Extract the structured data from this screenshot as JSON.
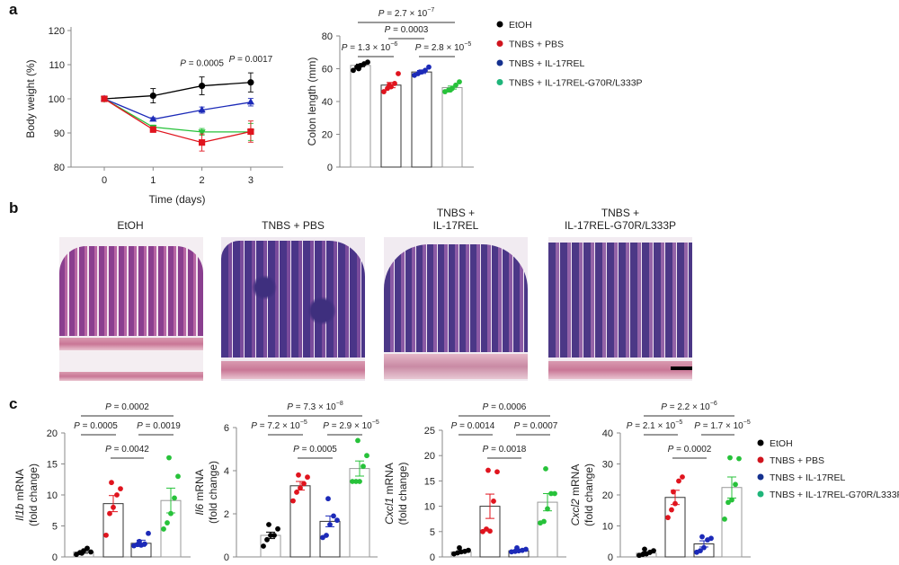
{
  "panel_labels": {
    "a": "a",
    "b": "b",
    "c": "c"
  },
  "groups": [
    {
      "name": "EtOH",
      "color": "#000000",
      "marker": "circle"
    },
    {
      "name": "TNBS + PBS",
      "color": "#e0141e",
      "marker": "square"
    },
    {
      "name": "TNBS + IL-17REL",
      "color": "#1c2ab8",
      "marker": "triangle-up"
    },
    {
      "name": "TNBS + IL-17REL-G70R/L333P",
      "color": "#27c23a",
      "marker": "triangle-down"
    }
  ],
  "legend_colors": [
    "#000000",
    "#d0141e",
    "#15318f",
    "#1fb57a"
  ],
  "histology": {
    "titles": [
      {
        "line1": "EtOH",
        "line2": ""
      },
      {
        "line1": "TNBS + PBS",
        "line2": ""
      },
      {
        "line1": "TNBS +",
        "line2": "IL-17REL"
      },
      {
        "line1": "TNBS +",
        "line2": "IL-17REL-G70R/L333P"
      }
    ],
    "scale_bar_shown": true
  },
  "chart_data": [
    {
      "type": "line",
      "xlabel": "Time (days)",
      "ylabel": "Body weight (%)",
      "x": [
        0,
        1,
        2,
        3
      ],
      "xticks": [
        "0",
        "1",
        "2",
        "3"
      ],
      "ylim": [
        80,
        120
      ],
      "yticks": [
        80,
        90,
        100,
        110,
        120
      ],
      "series": [
        {
          "name": "EtOH",
          "values": [
            100,
            100.9,
            103.8,
            104.8
          ],
          "error": [
            0.3,
            2.1,
            2.6,
            2.8
          ]
        },
        {
          "name": "TNBS + IL-17REL",
          "values": [
            100,
            94.0,
            96.7,
            99.0
          ],
          "error": [
            0.3,
            0.5,
            0.9,
            1.1
          ]
        },
        {
          "name": "TNBS + IL-17REL-G70R/L333P",
          "values": [
            100,
            91.7,
            90.3,
            90.3
          ],
          "error": [
            0.3,
            0.6,
            1.0,
            2.5
          ]
        },
        {
          "name": "TNBS + PBS",
          "values": [
            100,
            91.0,
            87.2,
            90.4
          ],
          "error": [
            0.3,
            0.8,
            2.5,
            3.1
          ]
        }
      ],
      "annotations": [
        {
          "day": 2,
          "label": "P = 0.0005",
          "exp": ""
        },
        {
          "day": 3,
          "label": "P = 0.0017",
          "exp": ""
        }
      ]
    },
    {
      "type": "bar",
      "ylabel": "Colon length (mm)",
      "categories": [
        "EtOH",
        "TNBS + PBS",
        "TNBS + IL-17REL",
        "TNBS + IL-17REL-G70R/L333P"
      ],
      "ylim": [
        0,
        80
      ],
      "yticks": [
        0,
        20,
        40,
        60,
        80
      ],
      "values": [
        62,
        50,
        58,
        48.5
      ],
      "error": [
        0.8,
        1.6,
        0.9,
        0.9
      ],
      "points": [
        [
          59,
          61,
          62,
          63,
          64,
          60
        ],
        [
          46,
          48,
          49,
          51,
          57,
          50
        ],
        [
          56,
          57,
          58,
          59,
          61,
          58
        ],
        [
          46,
          47,
          48,
          50,
          52,
          47
        ]
      ],
      "comparisons": [
        {
          "from": 0,
          "to": 3,
          "label": "P = 2.7 × 10",
          "exp": "−7"
        },
        {
          "from": 1,
          "to": 2,
          "label": "P = 0.0003",
          "exp": ""
        },
        {
          "from": 0,
          "to": 1,
          "label": "P = 1.3 × 10",
          "exp": "−6"
        },
        {
          "from": 2,
          "to": 3,
          "label": "P = 2.8 × 10",
          "exp": "−5"
        }
      ]
    },
    {
      "type": "bar",
      "ylabel_gene": "Il1b",
      "ylabel_suffix": " mRNA",
      "ylabel_line2": "(fold change)",
      "categories": [
        "EtOH",
        "TNBS + PBS",
        "TNBS + IL-17REL",
        "TNBS + IL-17REL-G70R/L333P"
      ],
      "ylim": [
        0,
        20
      ],
      "yticks": [
        0,
        5,
        10,
        15,
        20
      ],
      "values": [
        0.8,
        8.6,
        2.2,
        9.1
      ],
      "error": [
        0.2,
        1.3,
        0.5,
        2.0
      ],
      "points": [
        [
          0.4,
          0.7,
          1.0,
          1.4,
          0.8,
          0.6
        ],
        [
          3.5,
          7.0,
          8.0,
          10.0,
          11.0,
          12.0
        ],
        [
          1.8,
          2.0,
          1.9,
          2.1,
          3.8,
          2.5
        ],
        [
          4.5,
          5.5,
          7.0,
          9.5,
          13.0,
          16.0
        ]
      ],
      "comparisons": [
        {
          "from": 0,
          "to": 3,
          "label": "P = 0.0002",
          "exp": ""
        },
        {
          "from": 0,
          "to": 1,
          "label": "P = 0.0005",
          "exp": ""
        },
        {
          "from": 2,
          "to": 3,
          "label": "P = 0.0019",
          "exp": ""
        },
        {
          "from": 1,
          "to": 2,
          "label": "P = 0.0042",
          "exp": ""
        }
      ]
    },
    {
      "type": "bar",
      "ylabel_gene": "Il6",
      "ylabel_suffix": " mRNA",
      "ylabel_line2": "(fold change)",
      "categories": [
        "EtOH",
        "TNBS + PBS",
        "TNBS + IL-17REL",
        "TNBS + IL-17REL-G70R/L333P"
      ],
      "ylim": [
        0,
        6
      ],
      "yticks": [
        0,
        2,
        4,
        6
      ],
      "values": [
        1.0,
        3.3,
        1.65,
        4.1
      ],
      "error": [
        0.15,
        0.2,
        0.25,
        0.35
      ],
      "points": [
        [
          0.5,
          0.8,
          1.0,
          1.0,
          1.3,
          1.5
        ],
        [
          2.6,
          3.0,
          3.2,
          3.4,
          3.7,
          3.8
        ],
        [
          0.9,
          1.0,
          1.5,
          1.9,
          1.7,
          2.7
        ],
        [
          3.5,
          3.5,
          3.5,
          4.2,
          4.7,
          5.4
        ]
      ],
      "comparisons": [
        {
          "from": 0,
          "to": 3,
          "label": "P = 7.3 × 10",
          "exp": "−8"
        },
        {
          "from": 0,
          "to": 1,
          "label": "P = 7.2 × 10",
          "exp": "−5"
        },
        {
          "from": 2,
          "to": 3,
          "label": "P = 2.9 × 10",
          "exp": "−5"
        },
        {
          "from": 1,
          "to": 2,
          "label": "P = 0.0005",
          "exp": ""
        }
      ]
    },
    {
      "type": "bar",
      "ylabel_gene": "Cxcl1",
      "ylabel_suffix": " mRNA",
      "ylabel_line2": "(fold change)",
      "categories": [
        "EtOH",
        "TNBS + PBS",
        "TNBS + IL-17REL",
        "TNBS + IL-17REL-G70R/L333P"
      ],
      "ylim": [
        0,
        25
      ],
      "yticks": [
        0,
        5,
        10,
        15,
        20,
        25
      ],
      "values": [
        1.0,
        10.0,
        1.2,
        10.8
      ],
      "error": [
        0.2,
        2.4,
        0.2,
        1.7
      ],
      "points": [
        [
          0.6,
          0.8,
          1.0,
          1.1,
          1.3,
          1.8
        ],
        [
          5.0,
          5.5,
          5.1,
          11.0,
          16.8,
          17.1
        ],
        [
          1.0,
          1.1,
          1.2,
          1.3,
          1.5,
          1.8
        ],
        [
          6.7,
          7.0,
          9.5,
          12.5,
          12.5,
          17.4
        ]
      ],
      "comparisons": [
        {
          "from": 0,
          "to": 3,
          "label": "P = 0.0006",
          "exp": ""
        },
        {
          "from": 0,
          "to": 1,
          "label": "P = 0.0014",
          "exp": ""
        },
        {
          "from": 2,
          "to": 3,
          "label": "P = 0.0007",
          "exp": ""
        },
        {
          "from": 1,
          "to": 2,
          "label": "P = 0.0018",
          "exp": ""
        }
      ]
    },
    {
      "type": "bar",
      "ylabel_gene": "Cxcl2",
      "ylabel_suffix": " mRNA",
      "ylabel_line2": "(fold change)",
      "categories": [
        "EtOH",
        "TNBS + PBS",
        "TNBS + IL-17REL",
        "TNBS + IL-17REL-G70R/L333P"
      ],
      "ylim": [
        0,
        40
      ],
      "yticks": [
        0,
        10,
        20,
        30,
        40
      ],
      "values": [
        1.2,
        19.2,
        4.2,
        22.4
      ],
      "error": [
        0.4,
        2.3,
        1.0,
        3.4
      ],
      "points": [
        [
          0.5,
          0.8,
          1.0,
          1.5,
          2.0,
          2.5
        ],
        [
          12.7,
          15.2,
          17.2,
          24.5,
          25.8,
          21.0
        ],
        [
          1.5,
          2.0,
          3.0,
          5.5,
          6.0,
          6.5
        ],
        [
          12.2,
          17.6,
          18.4,
          23.4,
          31.7,
          32.0
        ]
      ],
      "comparisons": [
        {
          "from": 0,
          "to": 3,
          "label": "P = 2.2 × 10",
          "exp": "−6"
        },
        {
          "from": 0,
          "to": 1,
          "label": "P = 2.1 × 10",
          "exp": "−5"
        },
        {
          "from": 2,
          "to": 3,
          "label": "P = 1.7 × 10",
          "exp": "−5"
        },
        {
          "from": 1,
          "to": 2,
          "label": "P = 0.0002",
          "exp": ""
        }
      ]
    }
  ]
}
